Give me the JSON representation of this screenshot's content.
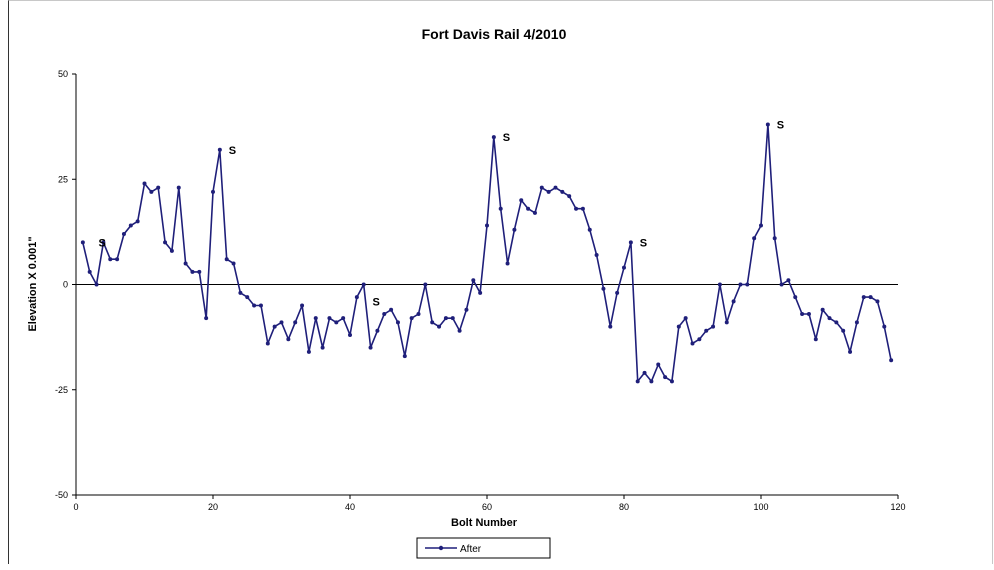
{
  "chart_data": {
    "type": "line",
    "title": "Fort Davis Rail 4/2010",
    "xlabel": "Bolt Number",
    "ylabel": "Elevation X 0.001\"",
    "xlim": [
      0,
      120
    ],
    "ylim": [
      -50,
      50
    ],
    "x_ticks": [
      "0",
      "20",
      "40",
      "60",
      "80",
      "100",
      "120"
    ],
    "y_ticks": [
      "50",
      "25",
      "0",
      "-25",
      "-50"
    ],
    "legend_position": "bottom-center",
    "colors": {
      "series": "#1f1f7a"
    },
    "series": [
      {
        "name": "After",
        "x": [
          1,
          2,
          3,
          4,
          5,
          6,
          7,
          8,
          9,
          10,
          11,
          12,
          13,
          14,
          15,
          16,
          17,
          18,
          19,
          20,
          21,
          22,
          23,
          24,
          25,
          26,
          27,
          28,
          29,
          30,
          31,
          32,
          33,
          34,
          35,
          36,
          37,
          38,
          39,
          40,
          41,
          42,
          43,
          44,
          45,
          46,
          47,
          48,
          49,
          50,
          51,
          52,
          53,
          54,
          55,
          56,
          57,
          58,
          59,
          60,
          61,
          62,
          63,
          64,
          65,
          66,
          67,
          68,
          69,
          70,
          71,
          72,
          73,
          74,
          75,
          76,
          77,
          78,
          79,
          80,
          81,
          82,
          83,
          84,
          85,
          86,
          87,
          88,
          89,
          90,
          91,
          92,
          93,
          94,
          95,
          96,
          97,
          98,
          99,
          100,
          101,
          102,
          103,
          104,
          105,
          106,
          107,
          108,
          109,
          110,
          111,
          112,
          113,
          114,
          115,
          116,
          117,
          118,
          119
        ],
        "y": [
          10,
          3,
          0,
          10,
          6,
          6,
          12,
          14,
          15,
          24,
          22,
          23,
          10,
          8,
          23,
          5,
          3,
          3,
          -8,
          22,
          32,
          6,
          5,
          -2,
          -3,
          -5,
          -5,
          -14,
          -10,
          -9,
          -13,
          -9,
          -5,
          -16,
          -8,
          -15,
          -8,
          -9,
          -8,
          -12,
          -3,
          0,
          -15,
          -11,
          -7,
          -6,
          -9,
          -17,
          -8,
          -7,
          0,
          -9,
          -10,
          -8,
          -8,
          -11,
          -6,
          1,
          -2,
          14,
          35,
          18,
          5,
          13,
          20,
          18,
          17,
          23,
          22,
          23,
          22,
          21,
          18,
          18,
          13,
          7,
          -1,
          -10,
          -2,
          4,
          10,
          -23,
          -21,
          -23,
          -19,
          -22,
          -23,
          -10,
          -8,
          -14,
          -13,
          -11,
          -10,
          0,
          -9,
          -4,
          0,
          0,
          11,
          14,
          38,
          11,
          0,
          1,
          -3,
          -7,
          -7,
          -13,
          -6,
          -8,
          -9,
          -11,
          -16,
          -9,
          -3,
          -3,
          -4,
          -10,
          -18
        ]
      }
    ],
    "annotations": [
      {
        "text": "S",
        "x": 3,
        "y": 10
      },
      {
        "text": "S",
        "x": 22,
        "y": 32
      },
      {
        "text": "S",
        "x": 43,
        "y": -4
      },
      {
        "text": "S",
        "x": 62,
        "y": 35
      },
      {
        "text": "S",
        "x": 82,
        "y": 10
      },
      {
        "text": "S",
        "x": 102,
        "y": 38
      }
    ]
  }
}
